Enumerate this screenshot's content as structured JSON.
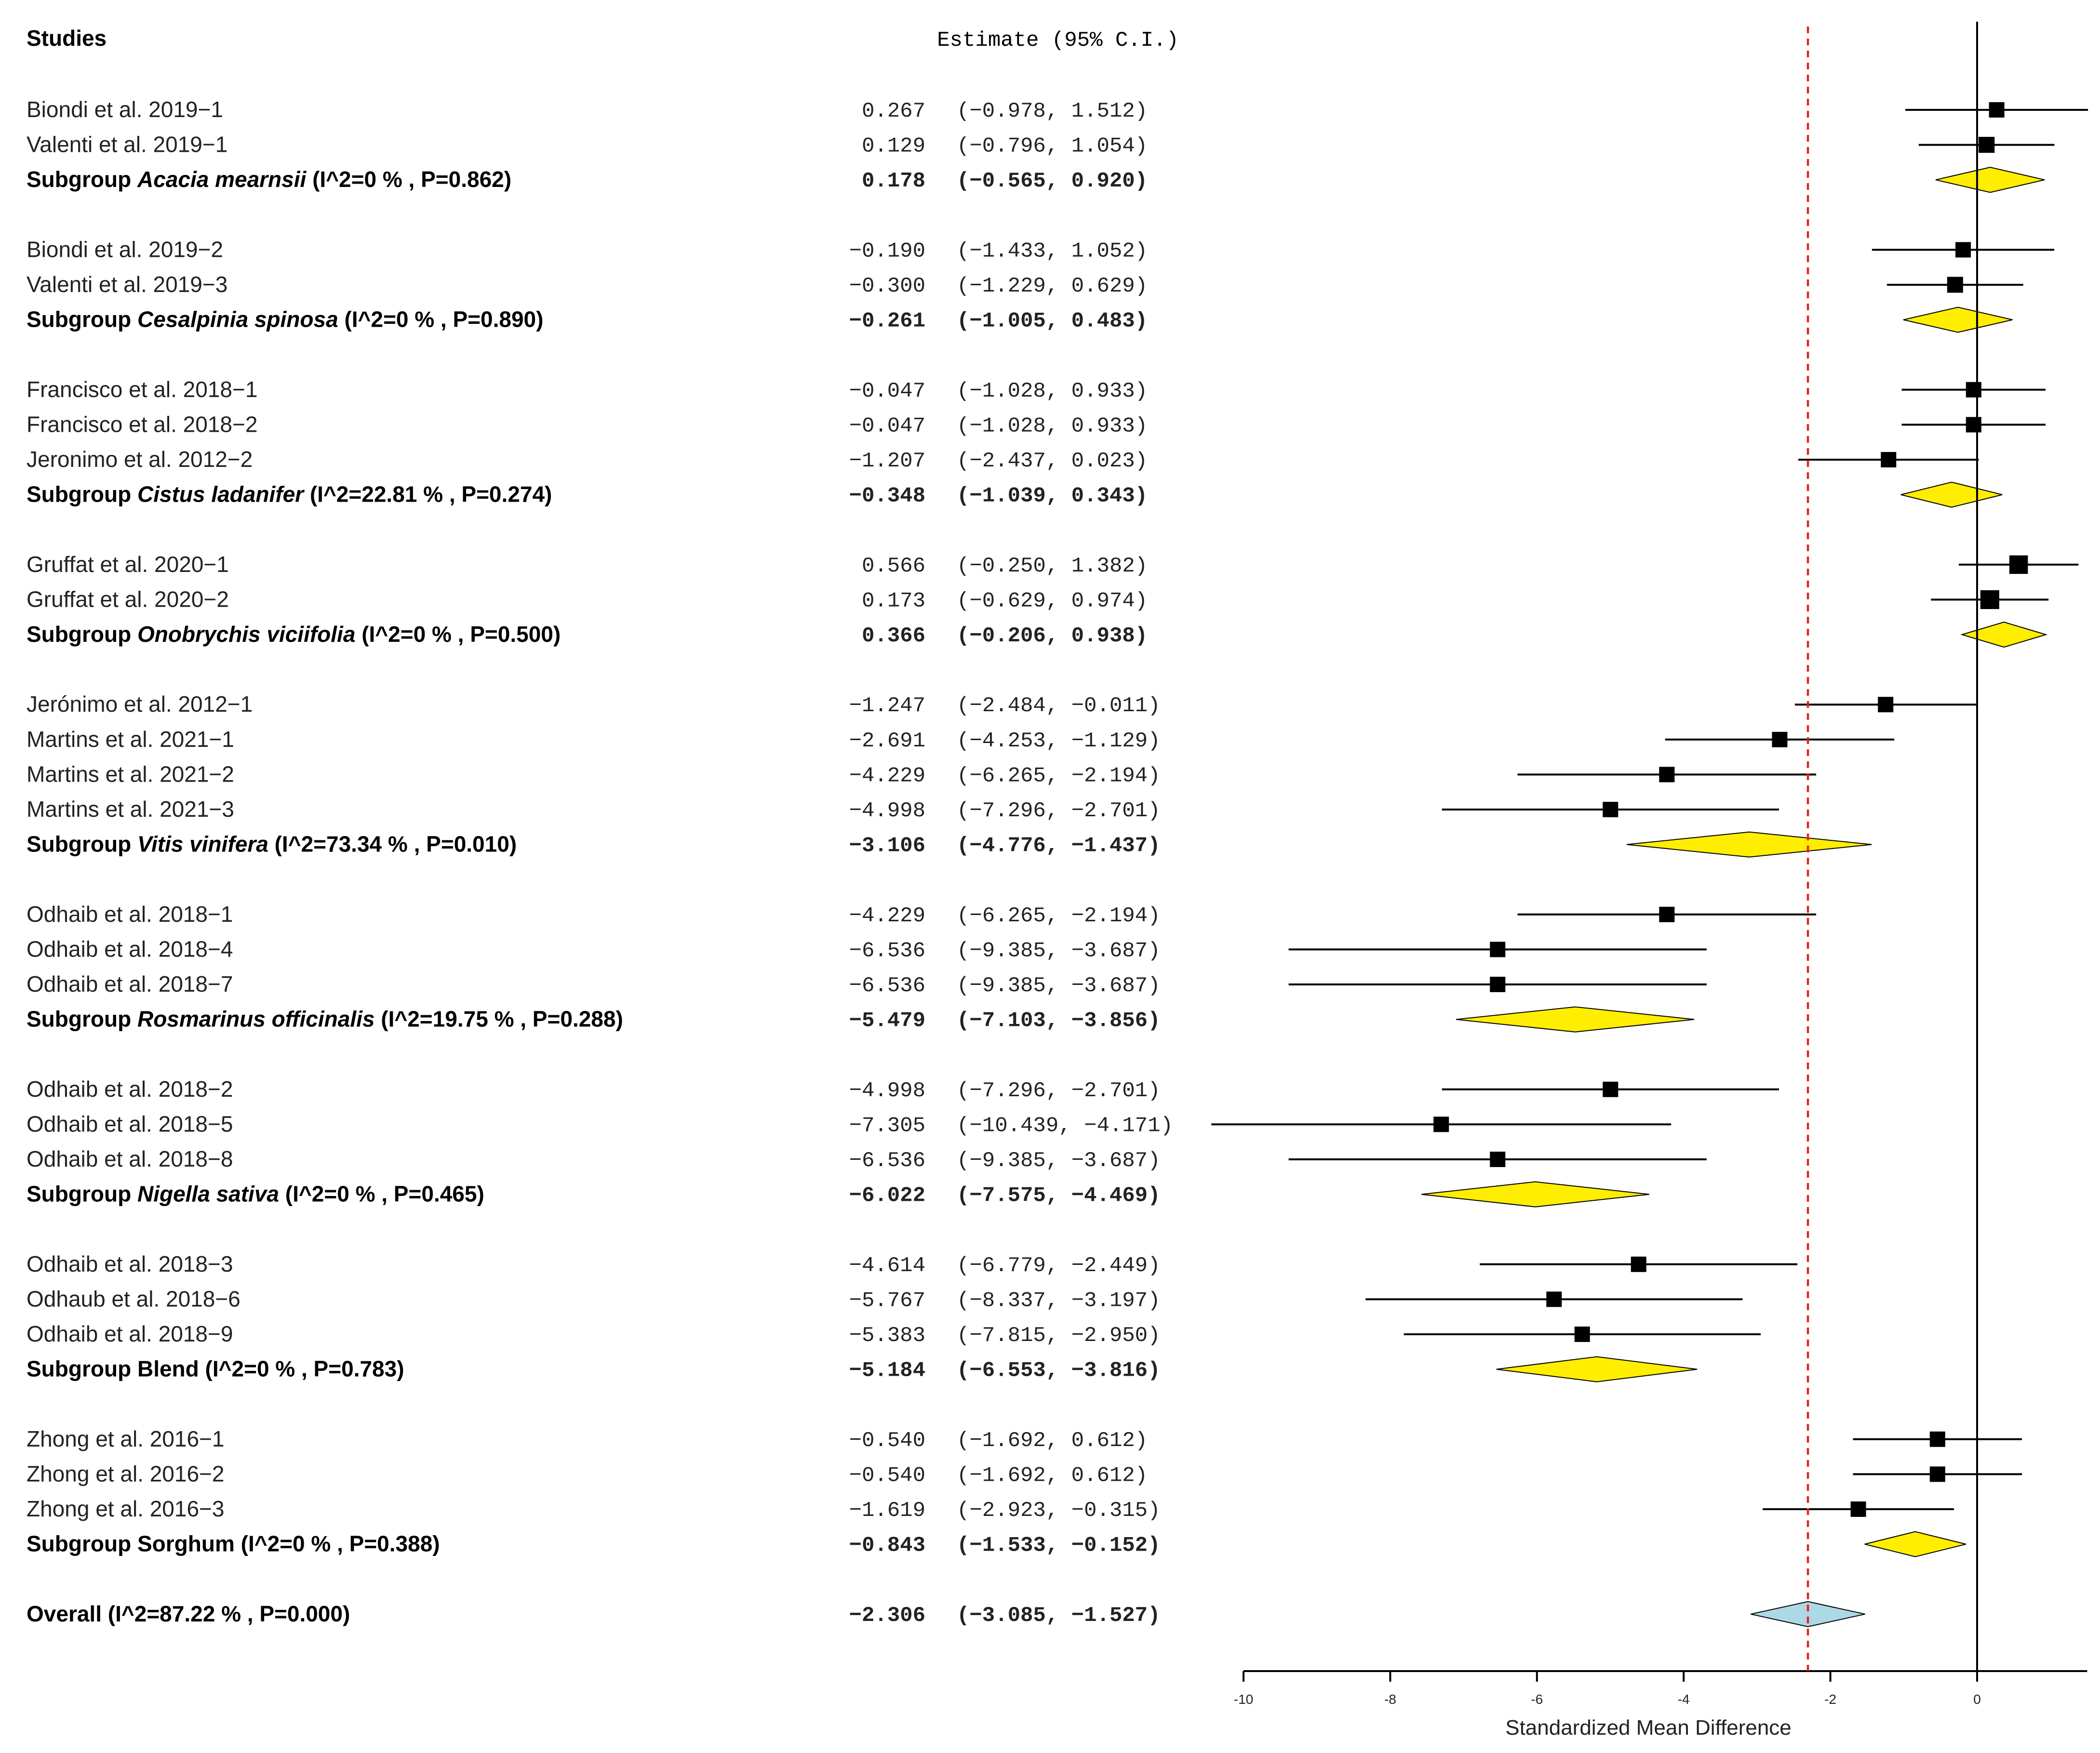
{
  "chart_data": {
    "type": "forest",
    "header": {
      "studies": "Studies",
      "estimate": "Estimate (95% C.I.)"
    },
    "xlabel": "Standardized Mean Difference",
    "xlim": [
      -10,
      1.5
    ],
    "xticks": [
      -10,
      -8,
      -6,
      -4,
      -2,
      0
    ],
    "xtick_labels": [
      "-10",
      "-8",
      "-6",
      "-4",
      "-2",
      "0"
    ],
    "reference_line": -2.306,
    "zero_line": 0,
    "colors": {
      "subgroup_diamond": "#ffee00",
      "overall_diamond": "#add8e6",
      "reference": "#e8201c",
      "marker": "#000000"
    },
    "groups": [
      {
        "studies": [
          {
            "label": "Biondi et al. 2019−1",
            "est": 0.267,
            "lo": -0.978,
            "hi": 1.512,
            "est_text": "0.267",
            "ci_text": "(−0.978,  1.512)"
          },
          {
            "label": "Valenti et al. 2019−1",
            "est": 0.129,
            "lo": -0.796,
            "hi": 1.054,
            "est_text": "0.129",
            "ci_text": "(−0.796,  1.054)"
          }
        ],
        "subgroup": {
          "prefix": "Subgroup ",
          "name": "Acacia mearnsii",
          "stats": " (I^2=0 % , P=0.862)",
          "est": 0.178,
          "lo": -0.565,
          "hi": 0.92,
          "est_text": "0.178",
          "ci_text": "(−0.565,  0.920)"
        }
      },
      {
        "studies": [
          {
            "label": "Biondi et al. 2019−2",
            "est": -0.19,
            "lo": -1.433,
            "hi": 1.052,
            "est_text": "−0.190",
            "ci_text": "(−1.433,  1.052)"
          },
          {
            "label": "Valenti et al. 2019−3",
            "est": -0.3,
            "lo": -1.229,
            "hi": 0.629,
            "est_text": "−0.300",
            "ci_text": "(−1.229,  0.629)"
          }
        ],
        "subgroup": {
          "prefix": "Subgroup ",
          "name": "Cesalpinia spinosa",
          "stats": " (I^2=0 % , P=0.890)",
          "est": -0.261,
          "lo": -1.005,
          "hi": 0.483,
          "est_text": "−0.261",
          "ci_text": "(−1.005,  0.483)"
        }
      },
      {
        "studies": [
          {
            "label": "Francisco et al. 2018−1",
            "est": -0.047,
            "lo": -1.028,
            "hi": 0.933,
            "est_text": "−0.047",
            "ci_text": "(−1.028,  0.933)"
          },
          {
            "label": "Francisco et al. 2018−2",
            "est": -0.047,
            "lo": -1.028,
            "hi": 0.933,
            "est_text": "−0.047",
            "ci_text": "(−1.028,  0.933)"
          },
          {
            "label": "Jeronimo et al. 2012−2",
            "est": -1.207,
            "lo": -2.437,
            "hi": 0.023,
            "est_text": "−1.207",
            "ci_text": "(−2.437,  0.023)"
          }
        ],
        "subgroup": {
          "prefix": "Subgroup ",
          "name": "Cistus ladanifer",
          "stats": " (I^2=22.81 % , P=0.274)",
          "est": -0.348,
          "lo": -1.039,
          "hi": 0.343,
          "est_text": "−0.348",
          "ci_text": "(−1.039,  0.343)"
        }
      },
      {
        "studies": [
          {
            "label": "Gruffat et al. 2020−1",
            "est": 0.566,
            "lo": -0.25,
            "hi": 1.382,
            "est_text": "0.566",
            "ci_text": "(−0.250,  1.382)"
          },
          {
            "label": "Gruffat et al. 2020−2",
            "est": 0.173,
            "lo": -0.629,
            "hi": 0.974,
            "est_text": "0.173",
            "ci_text": "(−0.629,  0.974)"
          }
        ],
        "subgroup": {
          "prefix": "Subgroup ",
          "name": "Onobrychis viciifolia",
          "stats": " (I^2=0 % , P=0.500)",
          "est": 0.366,
          "lo": -0.206,
          "hi": 0.938,
          "est_text": "0.366",
          "ci_text": "(−0.206,  0.938)"
        }
      },
      {
        "studies": [
          {
            "label": "Jerónimo et al. 2012−1",
            "est": -1.247,
            "lo": -2.484,
            "hi": -0.011,
            "est_text": "−1.247",
            "ci_text": "(−2.484, −0.011)"
          },
          {
            "label": "Martins et al. 2021−1",
            "est": -2.691,
            "lo": -4.253,
            "hi": -1.129,
            "est_text": "−2.691",
            "ci_text": "(−4.253, −1.129)"
          },
          {
            "label": "Martins et al. 2021−2",
            "est": -4.229,
            "lo": -6.265,
            "hi": -2.194,
            "est_text": "−4.229",
            "ci_text": "(−6.265, −2.194)"
          },
          {
            "label": "Martins et al. 2021−3",
            "est": -4.998,
            "lo": -7.296,
            "hi": -2.701,
            "est_text": "−4.998",
            "ci_text": "(−7.296, −2.701)"
          }
        ],
        "subgroup": {
          "prefix": "Subgroup ",
          "name": "Vitis vinifera",
          "stats": " (I^2=73.34 % , P=0.010)",
          "est": -3.106,
          "lo": -4.776,
          "hi": -1.437,
          "est_text": "−3.106",
          "ci_text": "(−4.776, −1.437)"
        }
      },
      {
        "studies": [
          {
            "label": "Odhaib et al. 2018−1",
            "est": -4.229,
            "lo": -6.265,
            "hi": -2.194,
            "est_text": "−4.229",
            "ci_text": "(−6.265, −2.194)"
          },
          {
            "label": "Odhaib et al. 2018−4",
            "est": -6.536,
            "lo": -9.385,
            "hi": -3.687,
            "est_text": "−6.536",
            "ci_text": "(−9.385, −3.687)"
          },
          {
            "label": "Odhaib et al. 2018−7",
            "est": -6.536,
            "lo": -9.385,
            "hi": -3.687,
            "est_text": "−6.536",
            "ci_text": "(−9.385, −3.687)"
          }
        ],
        "subgroup": {
          "prefix": "Subgroup ",
          "name": "Rosmarinus officinalis",
          "stats": " (I^2=19.75 % , P=0.288)",
          "est": -5.479,
          "lo": -7.103,
          "hi": -3.856,
          "est_text": "−5.479",
          "ci_text": "(−7.103, −3.856)"
        }
      },
      {
        "studies": [
          {
            "label": "Odhaib et al. 2018−2",
            "est": -4.998,
            "lo": -7.296,
            "hi": -2.701,
            "est_text": "−4.998",
            "ci_text": "(−7.296, −2.701)"
          },
          {
            "label": "Odhaib et al. 2018−5",
            "est": -7.305,
            "lo": -10.439,
            "hi": -4.171,
            "est_text": "−7.305",
            "ci_text": "(−10.439, −4.171)"
          },
          {
            "label": "Odhaib et al. 2018−8",
            "est": -6.536,
            "lo": -9.385,
            "hi": -3.687,
            "est_text": "−6.536",
            "ci_text": "(−9.385, −3.687)"
          }
        ],
        "subgroup": {
          "prefix": "Subgroup ",
          "name": "Nigella sativa",
          "stats": " (I^2=0 % , P=0.465)",
          "est": -6.022,
          "lo": -7.575,
          "hi": -4.469,
          "est_text": "−6.022",
          "ci_text": "(−7.575, −4.469)"
        }
      },
      {
        "studies": [
          {
            "label": "Odhaib et al. 2018−3",
            "est": -4.614,
            "lo": -6.779,
            "hi": -2.449,
            "est_text": "−4.614",
            "ci_text": "(−6.779, −2.449)"
          },
          {
            "label": "Odhaub et al. 2018−6",
            "est": -5.767,
            "lo": -8.337,
            "hi": -3.197,
            "est_text": "−5.767",
            "ci_text": "(−8.337, −3.197)"
          },
          {
            "label": "Odhaib et al. 2018−9",
            "est": -5.383,
            "lo": -7.815,
            "hi": -2.95,
            "est_text": "−5.383",
            "ci_text": "(−7.815, −2.950)"
          }
        ],
        "subgroup": {
          "prefix": "Subgroup ",
          "name": "",
          "stats": "Blend (I^2=0 % , P=0.783)",
          "est": -5.184,
          "lo": -6.553,
          "hi": -3.816,
          "est_text": "−5.184",
          "ci_text": "(−6.553, −3.816)"
        }
      },
      {
        "studies": [
          {
            "label": "Zhong et al. 2016−1",
            "est": -0.54,
            "lo": -1.692,
            "hi": 0.612,
            "est_text": "−0.540",
            "ci_text": "(−1.692,  0.612)"
          },
          {
            "label": "Zhong et al. 2016−2",
            "est": -0.54,
            "lo": -1.692,
            "hi": 0.612,
            "est_text": "−0.540",
            "ci_text": "(−1.692,  0.612)"
          },
          {
            "label": "Zhong et al. 2016−3",
            "est": -1.619,
            "lo": -2.923,
            "hi": -0.315,
            "est_text": "−1.619",
            "ci_text": "(−2.923, −0.315)"
          }
        ],
        "subgroup": {
          "prefix": "Subgroup ",
          "name": "",
          "stats": "Sorghum (I^2=0 % , P=0.388)",
          "est": -0.843,
          "lo": -1.533,
          "hi": -0.152,
          "est_text": "−0.843",
          "ci_text": "(−1.533, −0.152)"
        }
      }
    ],
    "overall": {
      "label": "Overall (I^2=87.22 % , P=0.000)",
      "est": -2.306,
      "lo": -3.085,
      "hi": -1.527,
      "est_text": "−2.306",
      "ci_text": "(−3.085, −1.527)"
    }
  }
}
